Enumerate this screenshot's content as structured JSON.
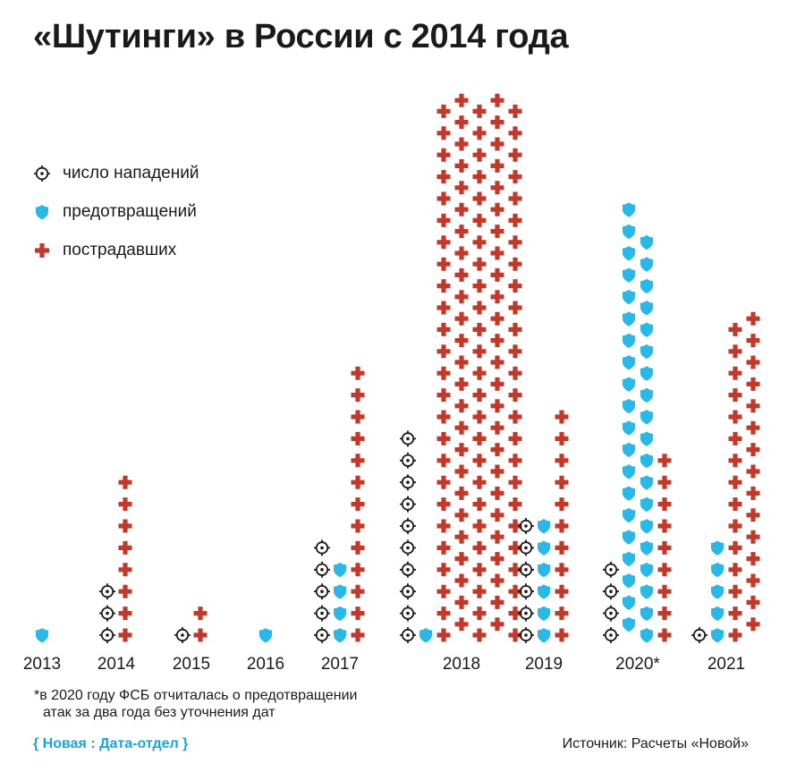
{
  "title": "«Шутинги» в России с 2014 года",
  "legend": [
    {
      "key": "attacks",
      "label": "число нападений",
      "icon": "target-icon",
      "color": "#1a1a1a"
    },
    {
      "key": "prevented",
      "label": "предотвращений",
      "icon": "shield-icon",
      "color": "#2bb8e6"
    },
    {
      "key": "victims",
      "label": "пострадавших",
      "icon": "cross-icon",
      "color": "#c0392b"
    }
  ],
  "colors": {
    "attacks": "#1a1a1a",
    "prevented": "#2bb8e6",
    "victims": "#c0392b"
  },
  "chart_data": {
    "type": "pictogram",
    "categories": [
      "2013",
      "2014",
      "2015",
      "2016",
      "2017",
      "2018",
      "2019",
      "2020*",
      "2021"
    ],
    "series": [
      {
        "name": "число нападений",
        "key": "attacks",
        "values": [
          0,
          3,
          1,
          0,
          5,
          10,
          6,
          4,
          1
        ]
      },
      {
        "name": "предотвращений",
        "key": "prevented",
        "values": [
          1,
          0,
          0,
          1,
          4,
          1,
          6,
          39,
          5
        ]
      },
      {
        "name": "пострадавших",
        "key": "victims",
        "values": [
          0,
          8,
          2,
          0,
          13,
          125,
          11,
          9,
          30
        ]
      }
    ]
  },
  "footnote": {
    "line1": "*в 2020 году ФСБ отчиталась о предотвращении",
    "line2": "атак за два года без уточнения дат"
  },
  "credit": "{ Новая : Дата-отдел }",
  "source": "Источник: Расчеты «Новой»"
}
